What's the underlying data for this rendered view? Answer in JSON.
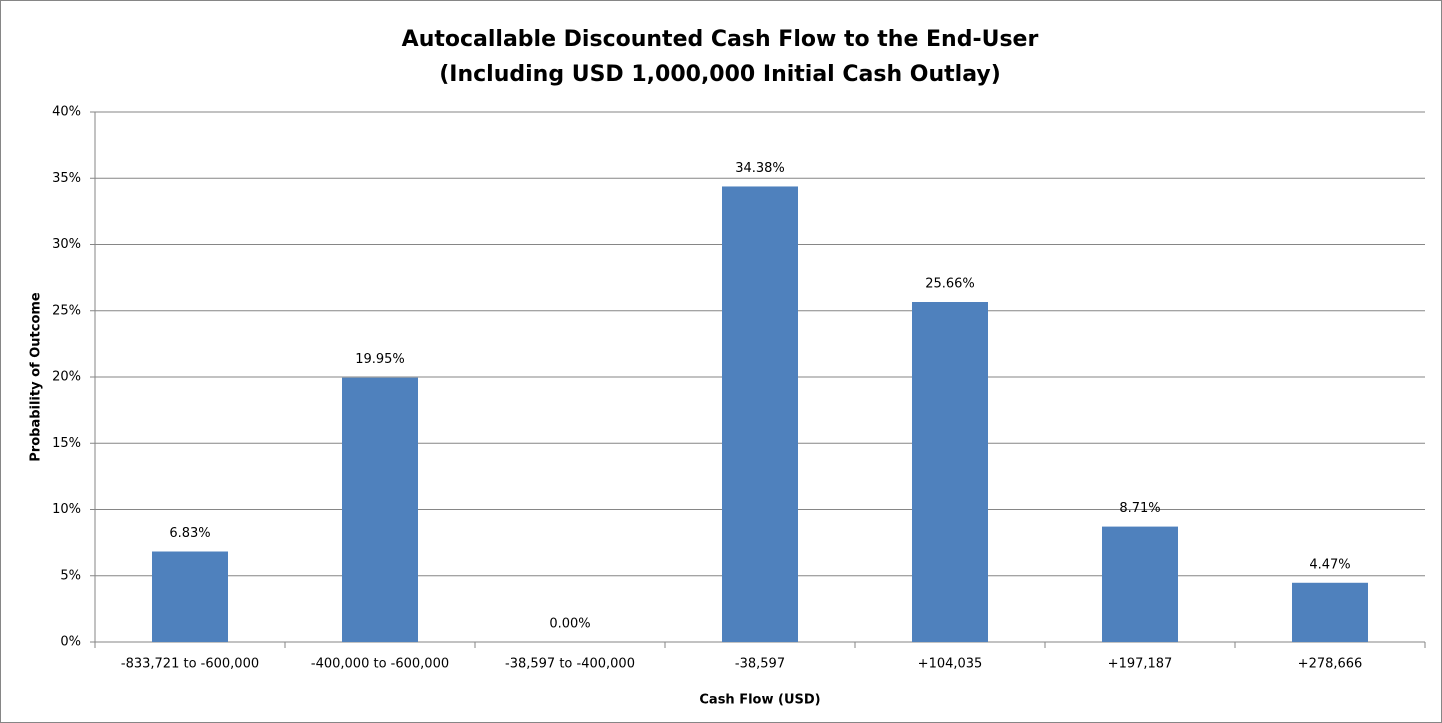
{
  "chart_data": {
    "type": "bar",
    "title": "Autocallable Discounted Cash Flow to the End-User",
    "subtitle": "(Including USD 1,000,000 Initial Cash Outlay)",
    "x_label": "Cash Flow (USD)",
    "y_label": "Probability of Outcome",
    "categories": [
      "-833,721 to -600,000",
      "-400,000 to -600,000",
      "-38,597 to -400,000",
      "-38,597",
      "+104,035",
      "+197,187",
      "+278,666"
    ],
    "values": [
      6.83,
      19.95,
      0,
      34.38,
      25.66,
      8.71,
      4.47
    ],
    "value_labels": [
      "6.83%",
      "19.95%",
      "0.00%",
      "34.38%",
      "25.66%",
      "8.71%",
      "4.47%"
    ],
    "color": "#4f81bd",
    "ylim": [
      0,
      40
    ],
    "yticks": [
      {
        "value": 0,
        "label": "0%"
      },
      {
        "value": 5,
        "label": "5%"
      },
      {
        "value": 10,
        "label": "10%"
      },
      {
        "value": 15,
        "label": "15%"
      },
      {
        "value": 20,
        "label": "20%"
      },
      {
        "value": 25,
        "label": "25%"
      },
      {
        "value": 30,
        "label": "30%"
      },
      {
        "value": 35,
        "label": "35%"
      },
      {
        "value": 40,
        "label": "40%"
      }
    ],
    "grid": true
  }
}
